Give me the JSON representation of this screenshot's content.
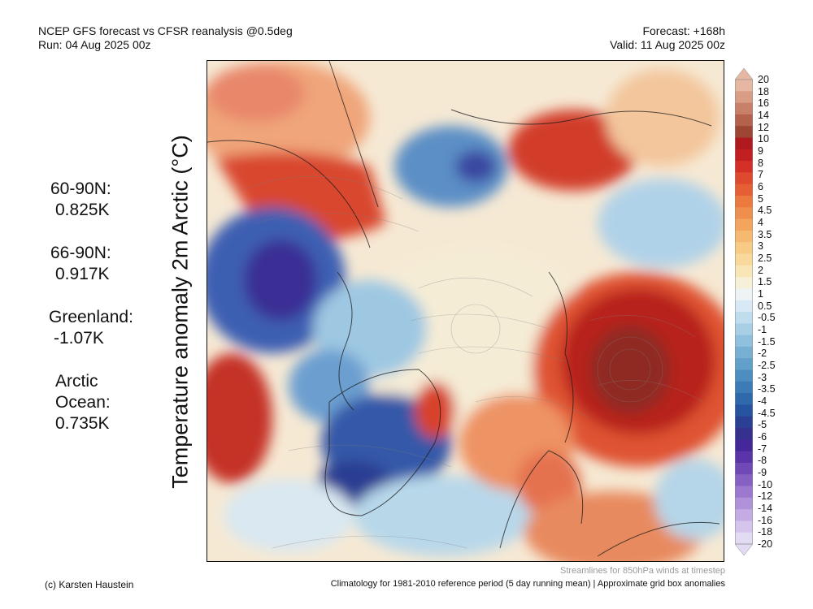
{
  "header": {
    "title": "NCEP GFS forecast vs CFSR reanalysis @0.5deg",
    "run": "Run: 04 Aug 2025 00z",
    "forecast": "Forecast: +168h",
    "valid": "Valid: 11 Aug 2025 00z"
  },
  "axis_label": "Temperature anomaly 2m Arctic (°C)",
  "stats": {
    "lat_60_90": {
      "label": "60-90N:",
      "value": "0.825K"
    },
    "lat_66_90": {
      "label": "66-90N:",
      "value": "0.917K"
    },
    "greenland": {
      "label": "Greenland:",
      "value": "-1.07K"
    },
    "arctic_ocean": {
      "label_line1": "Arctic",
      "label_line2": "Ocean:",
      "value": "0.735K"
    }
  },
  "colorbar": {
    "labels": [
      "20",
      "18",
      "16",
      "14",
      "12",
      "10",
      "9",
      "8",
      "7",
      "6",
      "5",
      "4.5",
      "4",
      "3.5",
      "3",
      "2.5",
      "2",
      "1.5",
      "1",
      "0.5",
      "-0.5",
      "-1",
      "-1.5",
      "-2",
      "-2.5",
      "-3",
      "-3.5",
      "-4",
      "-4.5",
      "-5",
      "-6",
      "-7",
      "-8",
      "-9",
      "-10",
      "-12",
      "-14",
      "-16",
      "-18",
      "-20"
    ],
    "colors": [
      "#e6b7a3",
      "#d99d86",
      "#c98068",
      "#b5624c",
      "#9d4634",
      "#b01a1e",
      "#c21f22",
      "#d43027",
      "#df4a2e",
      "#e65f34",
      "#ec7a3f",
      "#f08f4d",
      "#f3a55e",
      "#f5b972",
      "#f7ca85",
      "#f8d99b",
      "#f9e6b6",
      "#f7f0d8",
      "#eef3f5",
      "#d7e9f4",
      "#c0ddee",
      "#a8cfe6",
      "#8fc0dd",
      "#78b0d3",
      "#629fca",
      "#4e8dc0",
      "#3d7bb6",
      "#2f68ab",
      "#2654a0",
      "#2b3f95",
      "#36308f",
      "#45279a",
      "#5a34a8",
      "#7049b6",
      "#8760c3",
      "#9c78cf",
      "#b092da",
      "#c4abe3",
      "#d5c5ec",
      "#e3daf3"
    ]
  },
  "footer": {
    "streamlines": "Streamlines for 850hPa winds at timestep",
    "credit": "(c) Karsten Haustein",
    "climatology": "Climatology for 1981-2010 reference period (5 day running mean) | Approximate grid box anomalies"
  }
}
